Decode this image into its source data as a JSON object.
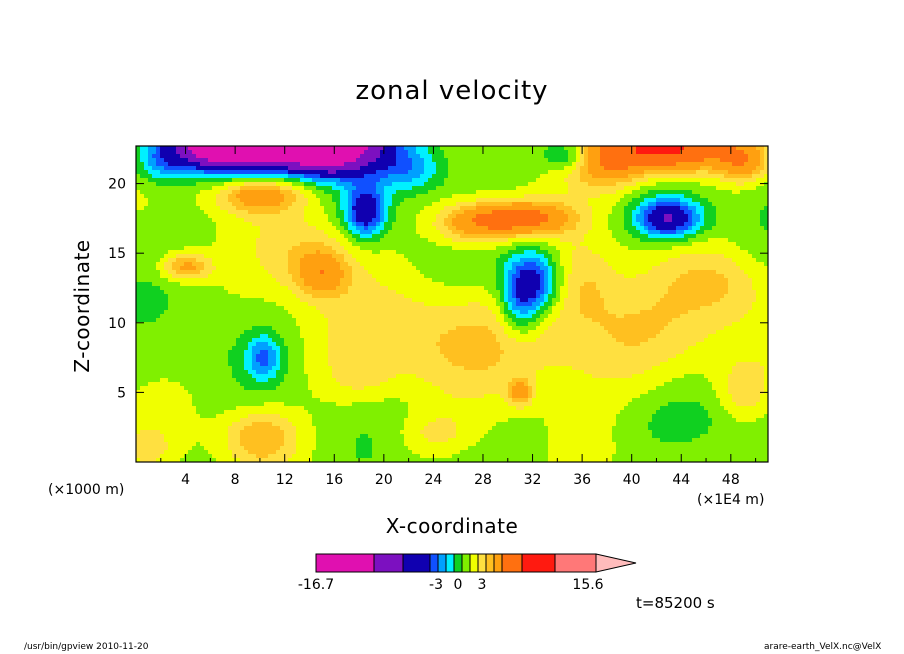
{
  "chart_data": {
    "type": "heatmap",
    "title": "zonal velocity",
    "xlabel": "X-coordinate",
    "ylabel": "Z-coordinate",
    "x_unit_note": "(×1000 m)",
    "x_unit_note_right": "(×1E4 m)",
    "x_ticks": [
      4,
      8,
      12,
      16,
      20,
      24,
      28,
      32,
      36,
      40,
      44,
      48
    ],
    "y_ticks": [
      5,
      10,
      15,
      20
    ],
    "xlim": [
      0,
      51
    ],
    "ylim": [
      0,
      22.7
    ],
    "colorbar": {
      "min_label": "-16.7",
      "labels": [
        "-3",
        "0",
        "3"
      ],
      "max_label": "15.6",
      "levels": [
        -16.7,
        -9,
        -6,
        -4,
        -3,
        -2,
        -1,
        0,
        1,
        2,
        3,
        4,
        6,
        9,
        15.6
      ],
      "colors": [
        "#e010b0",
        "#7c10c0",
        "#1000b0",
        "#1050ff",
        "#00a0ff",
        "#00f0ff",
        "#10d020",
        "#80f000",
        "#f0ff00",
        "#ffe040",
        "#ffc020",
        "#ffa010",
        "#ff7010",
        "#ff1a10",
        "#ff7878",
        "#ffbcbc"
      ]
    },
    "field_features": [
      {
        "x": 12,
        "z": 22.5,
        "value": -16.7
      },
      {
        "x": 8,
        "z": 21.5,
        "value": -6
      },
      {
        "x": 18.5,
        "z": 18.0,
        "value": -6
      },
      {
        "x": 32,
        "z": 13.0,
        "value": -6
      },
      {
        "x": 43,
        "z": 17.5,
        "value": -6
      },
      {
        "x": 10,
        "z": 2.0,
        "value": 3
      },
      {
        "x": 31,
        "z": 17.5,
        "value": 6
      },
      {
        "x": 43,
        "z": 21.5,
        "value": 9
      },
      {
        "x": 38,
        "z": 21.5,
        "value": 4
      },
      {
        "x": 4,
        "z": 14.0,
        "value": 3
      }
    ]
  },
  "annotations": {
    "time": "t=85200 s",
    "footer_left": "/usr/bin/gpview  2010-11-20",
    "footer_right": "arare-earth_VelX.nc@VelX"
  }
}
